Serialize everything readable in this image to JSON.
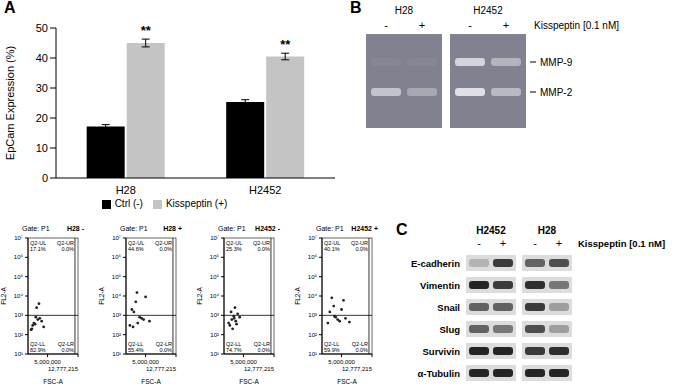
{
  "panel_labels": [
    "A",
    "B",
    "C"
  ],
  "chart_data": [
    {
      "type": "bar",
      "y_label": "EpCam Expression (%)",
      "categories": [
        "H28",
        "H2452"
      ],
      "series": [
        {
          "name": "Ctrl (-)",
          "color": "#000000",
          "values": [
            17.2,
            25.3
          ],
          "errors": [
            0.6,
            0.8
          ]
        },
        {
          "name": "Kisspeptin (+)",
          "color": "#c4c4c4",
          "values": [
            45,
            40.5
          ],
          "errors": [
            1.3,
            1.1
          ],
          "annotations": [
            "**",
            "**"
          ]
        }
      ],
      "ylim": [
        0,
        50
      ],
      "yticks": [
        0,
        10,
        20,
        30,
        40,
        50
      ],
      "legend": "bottom"
    },
    {
      "type": "scatter",
      "title": "H28 -",
      "subtitle": "Gate: P1",
      "x_label": "FSC-A",
      "y_label": "FL2-A",
      "log": "y",
      "color": "#222222",
      "xlim": [
        0,
        12777215
      ],
      "xticks": [
        {
          "value": 5000000,
          "label": "5,000,000"
        },
        {
          "value": 12777215,
          "label": "12,777,215"
        }
      ],
      "ylim": [
        10,
        10000000
      ],
      "yticks": [
        {
          "value": 10,
          "label": "10¹"
        },
        {
          "value": 100,
          "label": "10²"
        },
        {
          "value": 1000,
          "label": "10³"
        },
        {
          "value": 10000,
          "label": "10⁴"
        },
        {
          "value": 100000,
          "label": "10⁵"
        },
        {
          "value": 1000000,
          "label": "10⁶"
        },
        {
          "value": 10000000,
          "label": "10⁷"
        }
      ],
      "gate": {
        "x": 12000000,
        "y": 1000
      },
      "quadrants": [
        {
          "name": "Q2-UL",
          "label": "17.1%"
        },
        {
          "name": "Q2-UR",
          "label": "0.0%"
        },
        {
          "name": "Q2-LL",
          "label": "82.9%"
        },
        {
          "name": "Q2-LR",
          "label": "0.0%"
        }
      ],
      "points": {
        "x": [
          1000000,
          1500000,
          2000000,
          2500000,
          1200000,
          3000000,
          3500000,
          2200000,
          4000000,
          800000,
          1800000,
          2800000
        ],
        "y": [
          200,
          400,
          800,
          600,
          300,
          700,
          500,
          2500,
          250,
          180,
          350,
          4000
        ]
      }
    },
    {
      "type": "scatter",
      "title": "H28 +",
      "subtitle": "Gate: P1",
      "x_label": "FSC-A",
      "y_label": "FL2-A",
      "log": "y",
      "color": "#222222",
      "xlim": [
        0,
        12777215
      ],
      "xticks": [
        {
          "value": 5000000,
          "label": "5,000,000"
        },
        {
          "value": 12777215,
          "label": "12,777,215"
        }
      ],
      "ylim": [
        10,
        10000000
      ],
      "yticks": [
        {
          "value": 10,
          "label": "10¹"
        },
        {
          "value": 100,
          "label": "10²"
        },
        {
          "value": 1000,
          "label": "10³"
        },
        {
          "value": 10000,
          "label": "10⁴"
        },
        {
          "value": 100000,
          "label": "10⁵"
        },
        {
          "value": 1000000,
          "label": "10⁶"
        },
        {
          "value": 10000000,
          "label": "10⁷"
        }
      ],
      "gate": {
        "x": 12000000,
        "y": 1000
      },
      "quadrants": [
        {
          "name": "Q2-UL",
          "label": "44.6%"
        },
        {
          "name": "Q2-UR",
          "label": "0.0%"
        },
        {
          "name": "Q2-LL",
          "label": "55.4%"
        },
        {
          "name": "Q2-LR",
          "label": "0.0%"
        }
      ],
      "points": {
        "x": [
          1500000,
          2500000,
          3500000,
          4500000,
          2000000,
          3000000,
          5000000,
          1000000,
          4000000,
          2800000,
          6000000,
          1800000
        ],
        "y": [
          2000,
          5000,
          800,
          600,
          1500,
          400,
          9000,
          300,
          700,
          15000,
          500,
          250
        ]
      }
    },
    {
      "type": "scatter",
      "title": "H2452 -",
      "subtitle": "Gate: P1",
      "x_label": "FSC-A",
      "y_label": "FL2-A",
      "log": "y",
      "color": "#222222",
      "xlim": [
        0,
        12777215
      ],
      "xticks": [
        {
          "value": 5000000,
          "label": "5,000,000"
        },
        {
          "value": 12777215,
          "label": "12,777,215"
        }
      ],
      "ylim": [
        10,
        10000000
      ],
      "yticks": [
        {
          "value": 10,
          "label": "10¹"
        },
        {
          "value": 100,
          "label": "10²"
        },
        {
          "value": 1000,
          "label": "10³"
        },
        {
          "value": 10000,
          "label": "10⁴"
        },
        {
          "value": 100000,
          "label": "10⁵"
        },
        {
          "value": 1000000,
          "label": "10⁶"
        },
        {
          "value": 10000000,
          "label": "10⁷"
        }
      ],
      "gate": {
        "x": 12000000,
        "y": 1000
      },
      "quadrants": [
        {
          "name": "Q2-UL",
          "label": "25.3%"
        },
        {
          "name": "Q2-UR",
          "label": "0.0%"
        },
        {
          "name": "Q2-LL",
          "label": "74.7%"
        },
        {
          "name": "Q2-LR",
          "label": "0.0%"
        }
      ],
      "points": {
        "x": [
          1500000,
          2000000,
          2500000,
          3000000,
          3500000,
          1800000,
          2200000,
          4000000,
          2800000,
          1200000,
          3200000,
          2600000
        ],
        "y": [
          300,
          600,
          900,
          500,
          1200,
          1500,
          200,
          800,
          2500,
          400,
          350,
          700
        ]
      }
    },
    {
      "type": "scatter",
      "title": "H2452 +",
      "subtitle": "Gate: P1",
      "x_label": "FSC-A",
      "y_label": "FL2-A",
      "log": "y",
      "color": "#222222",
      "xlim": [
        0,
        12777215
      ],
      "xticks": [
        {
          "value": 5000000,
          "label": "5,000,000"
        },
        {
          "value": 12777215,
          "label": "12,777,215"
        }
      ],
      "ylim": [
        10,
        10000000
      ],
      "yticks": [
        {
          "value": 10,
          "label": "10¹"
        },
        {
          "value": 100,
          "label": "10²"
        },
        {
          "value": 1000,
          "label": "10³"
        },
        {
          "value": 10000,
          "label": "10⁴"
        },
        {
          "value": 100000,
          "label": "10⁵"
        },
        {
          "value": 1000000,
          "label": "10⁶"
        },
        {
          "value": 10000000,
          "label": "10⁷"
        }
      ],
      "gate": {
        "x": 12000000,
        "y": 1000
      },
      "quadrants": [
        {
          "name": "Q2-UL",
          "label": "40.1%"
        },
        {
          "name": "Q2-UR",
          "label": "0.0%"
        },
        {
          "name": "Q2-LL",
          "label": "59.9%"
        },
        {
          "name": "Q2-LR",
          "label": "0.0%"
        }
      ],
      "points": {
        "x": [
          2000000,
          3000000,
          4000000,
          5000000,
          2500000,
          3500000,
          4500000,
          6000000,
          1500000,
          5500000,
          3200000,
          7000000
        ],
        "y": [
          1500,
          3000,
          600,
          2000,
          8000,
          800,
          500,
          700,
          400,
          6000,
          900,
          450
        ]
      }
    }
  ],
  "zymography": {
    "cell_lines": [
      "H28",
      "H2452"
    ],
    "treatment": "Kisspeptin [0.1 nM]",
    "lanes": [
      "-",
      "+"
    ],
    "bands": [
      {
        "label": "MMP-9",
        "intensity": [
          [
            0.05,
            0.05
          ],
          [
            0.75,
            0.45
          ]
        ]
      },
      {
        "label": "MMP-2",
        "intensity": [
          [
            0.6,
            0.35
          ],
          [
            0.85,
            0.5
          ]
        ]
      }
    ]
  },
  "western_blot": {
    "cell_lines": [
      "H2452",
      "H28"
    ],
    "treatment": "Kisspeptin [0.1 nM]",
    "lanes": [
      "-",
      "+"
    ],
    "rows": [
      {
        "label": "E-cadherin",
        "intensity": [
          [
            0.2,
            0.8
          ],
          [
            0.6,
            0.7
          ]
        ]
      },
      {
        "label": "Vimentin",
        "intensity": [
          [
            0.9,
            0.8
          ],
          [
            0.85,
            0.5
          ]
        ]
      },
      {
        "label": "Snail",
        "intensity": [
          [
            0.6,
            0.6
          ],
          [
            0.8,
            0.3
          ]
        ]
      },
      {
        "label": "Slug",
        "intensity": [
          [
            0.6,
            0.5
          ],
          [
            0.7,
            0.3
          ]
        ]
      },
      {
        "label": "Survivin",
        "intensity": [
          [
            0.9,
            0.9
          ],
          [
            0.8,
            0.85
          ]
        ]
      },
      {
        "label": "α-Tubulin",
        "intensity": [
          [
            0.9,
            0.9
          ],
          [
            0.9,
            0.9
          ]
        ]
      }
    ]
  }
}
